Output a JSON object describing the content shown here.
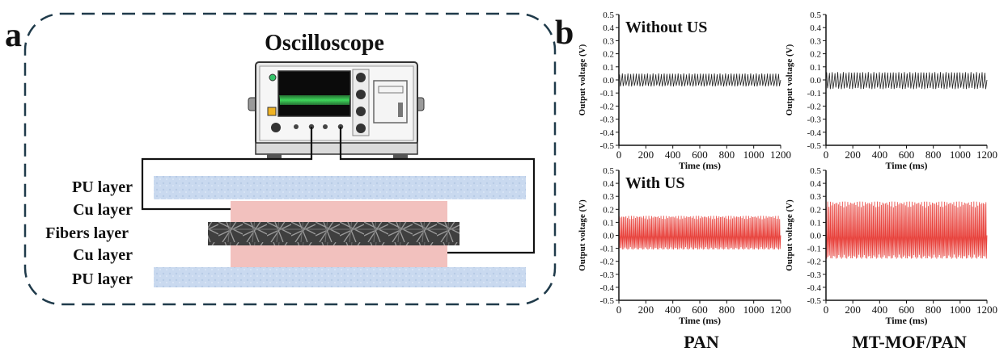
{
  "panel_a": {
    "label": "a",
    "title": "Oscilloscope",
    "layers": [
      "PU layer",
      "Cu layer",
      "Fibers layer",
      "Cu layer",
      "PU layer"
    ],
    "colors": {
      "pu": "#c8d8ef",
      "cu": "#f2c0bd",
      "fiber": "#4a4a4a",
      "dash": "#1f3a4a"
    }
  },
  "panel_b": {
    "label": "b",
    "column_labels": [
      "PAN",
      "MT-MOF/PAN"
    ],
    "colors": {
      "no_us": "#222222",
      "us": "#e8423c"
    }
  },
  "chart_data": [
    {
      "type": "line",
      "title": "Without US",
      "xlabel": "Time (ms)",
      "ylabel": "Output voltage (V)",
      "xlim": [
        0,
        1200
      ],
      "ylim": [
        -0.5,
        0.5
      ],
      "xticks": [
        "0",
        "200",
        "400",
        "600",
        "800",
        "1000",
        "1200"
      ],
      "yticks": [
        "0.5",
        "0.4",
        "0.3",
        "0.2",
        "0.1",
        "0.0",
        "-0.1",
        "-0.2",
        "-0.3",
        "-0.4",
        "-0.5"
      ],
      "series": [
        {
          "color": "#222222",
          "amplitude_max": 0.05,
          "amplitude_min": -0.05,
          "oscillations": 58
        }
      ]
    },
    {
      "type": "line",
      "title": "",
      "xlabel": "Time (ms)",
      "ylabel": "Output voltage (V)",
      "xlim": [
        0,
        1200
      ],
      "ylim": [
        -0.5,
        0.5
      ],
      "xticks": [
        "0",
        "200",
        "400",
        "600",
        "800",
        "1000",
        "1200"
      ],
      "yticks": [
        "0.5",
        "0.4",
        "0.3",
        "0.2",
        "0.1",
        "0.0",
        "-0.1",
        "-0.2",
        "-0.3",
        "-0.4",
        "-0.5"
      ],
      "series": [
        {
          "color": "#222222",
          "amplitude_max": 0.06,
          "amplitude_min": -0.07,
          "oscillations": 58
        }
      ]
    },
    {
      "type": "line",
      "title": "With US",
      "xlabel": "Time (ms)",
      "ylabel": "Output voltage (V)",
      "xlim": [
        0,
        1200
      ],
      "ylim": [
        -0.5,
        0.5
      ],
      "xticks": [
        "0",
        "200",
        "400",
        "600",
        "800",
        "1000",
        "1200"
      ],
      "yticks": [
        "0.5",
        "0.4",
        "0.3",
        "0.2",
        "0.1",
        "0.0",
        "-0.1",
        "-0.2",
        "-0.3",
        "-0.4",
        "-0.5"
      ],
      "series": [
        {
          "color": "#e8423c",
          "amplitude_max": 0.15,
          "amplitude_min": -0.11,
          "oscillations": 120
        }
      ]
    },
    {
      "type": "line",
      "title": "",
      "xlabel": "Time (ms)",
      "ylabel": "Output voltage (V)",
      "xlim": [
        0,
        1200
      ],
      "ylim": [
        -0.5,
        0.5
      ],
      "xticks": [
        "0",
        "200",
        "400",
        "600",
        "800",
        "1000",
        "1200"
      ],
      "yticks": [
        "0.5",
        "0.4",
        "0.3",
        "0.2",
        "0.1",
        "0.0",
        "-0.1",
        "-0.2",
        "-0.3",
        "-0.4",
        "-0.5"
      ],
      "series": [
        {
          "color": "#e8423c",
          "amplitude_max": 0.26,
          "amplitude_min": -0.18,
          "oscillations": 120
        }
      ]
    }
  ]
}
